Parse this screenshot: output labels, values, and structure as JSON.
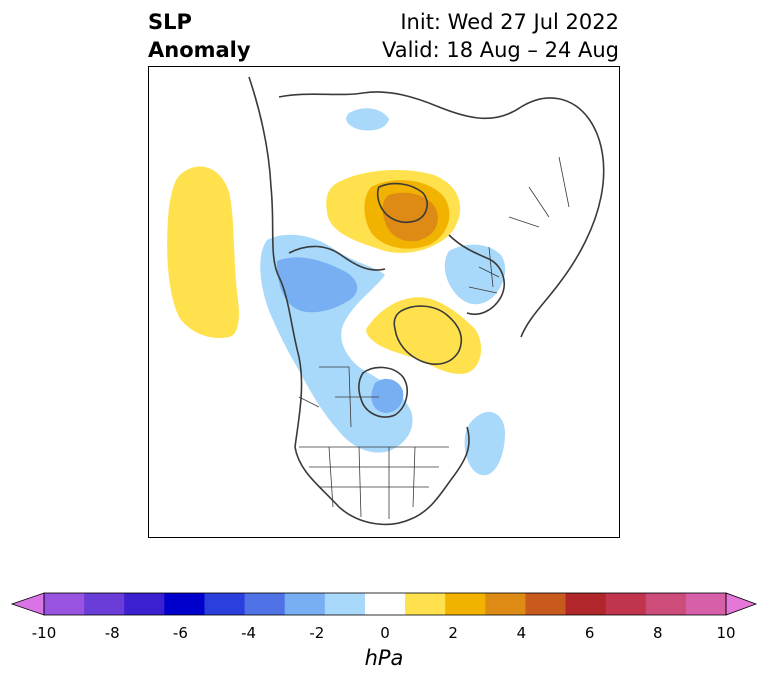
{
  "title": {
    "left_line1": "SLP",
    "left_line2": "Anomaly",
    "init": "Init: Wed 27 Jul 2022",
    "valid": "Valid: 18 Aug – 24 Aug"
  },
  "colorbar": {
    "label": "hPa",
    "min": -10,
    "max": 10,
    "ticks": [
      "-10",
      "-8",
      "-6",
      "-4",
      "-2",
      "0",
      "2",
      "4",
      "6",
      "8",
      "10"
    ],
    "colors": [
      "#da74e6",
      "#9a52e0",
      "#6a3cd8",
      "#3a20d0",
      "#0000cc",
      "#2a3fdb",
      "#4f73e6",
      "#78aff2",
      "#a8d8fa",
      "#ffffff",
      "#ffe14d",
      "#f2b300",
      "#de8b16",
      "#c85a1e",
      "#b0262a",
      "#c0344e",
      "#cc4c7a",
      "#d65fa8",
      "#e477d8"
    ],
    "extend_low_color": "#da74e6",
    "extend_high_color": "#e477d8"
  },
  "map": {
    "projection": "north-polar-stereographic",
    "land_color": "#ffffff",
    "coast_color": "#3a3a3a",
    "anomaly_regions": [
      {
        "name": "north-pacific-positive",
        "level": "1 to 2 hPa",
        "color": "#ffe14d"
      },
      {
        "name": "eurasia-arctic-positive",
        "level": "1 to 2 hPa",
        "color": "#ffe14d"
      },
      {
        "name": "eurasia-arctic-core",
        "level": "2 to 3 hPa",
        "color": "#f2b300"
      },
      {
        "name": "eurasia-arctic-max",
        "level": "3 to 4 hPa",
        "color": "#de8b16"
      },
      {
        "name": "canada-negative",
        "level": "-1 to -2 hPa",
        "color": "#a8d8fa"
      },
      {
        "name": "canada-core",
        "level": "-2 to -3 hPa",
        "color": "#78aff2"
      },
      {
        "name": "hudson-bay-core",
        "level": "-2 to -3 hPa",
        "color": "#78aff2"
      },
      {
        "name": "greenland-positive",
        "level": "1 to 2 hPa",
        "color": "#ffe14d"
      },
      {
        "name": "atlantic-negative",
        "level": "-1 to -2 hPa",
        "color": "#a8d8fa"
      },
      {
        "name": "europe-negative",
        "level": "-1 to -2 hPa",
        "color": "#a8d8fa"
      }
    ]
  }
}
